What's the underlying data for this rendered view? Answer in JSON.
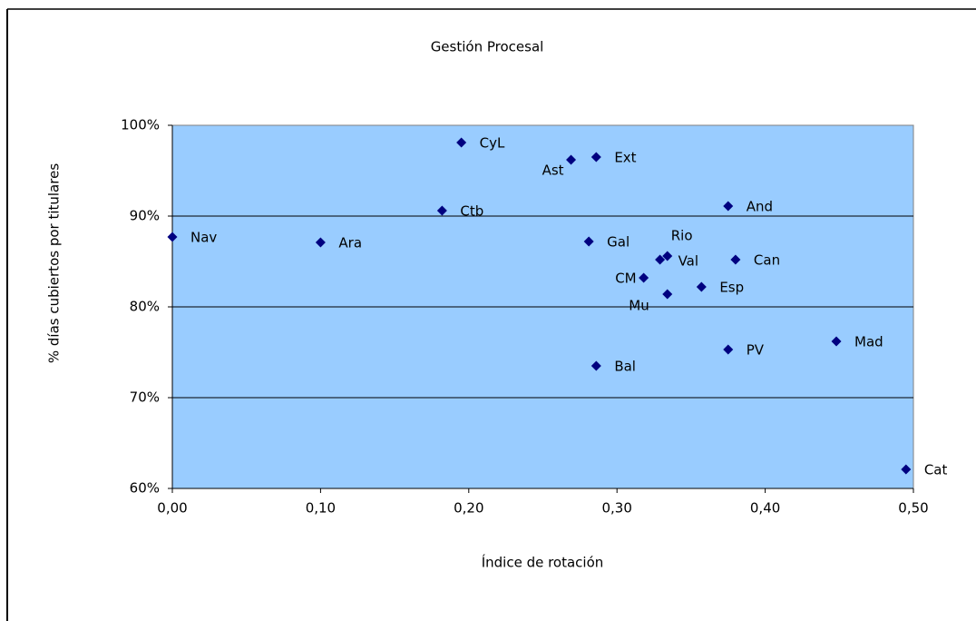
{
  "chart_data": {
    "type": "scatter",
    "title": "Gestión Procesal",
    "x_label": "Índice de rotación",
    "y_label": "% días cubiertos por titulares",
    "color": "#000080",
    "plot_background": "#99ccff",
    "grid": true,
    "xlim": [
      0,
      0.5
    ],
    "ylim": [
      60,
      100
    ],
    "xticks": [
      {
        "value": 0,
        "label": "0,00"
      },
      {
        "value": 0.1,
        "label": "0,10"
      },
      {
        "value": 0.2,
        "label": "0,20"
      },
      {
        "value": 0.3,
        "label": "0,30"
      },
      {
        "value": 0.4,
        "label": "0,40"
      },
      {
        "value": 0.5,
        "label": "0,50"
      }
    ],
    "yticks": [
      {
        "value": 60,
        "label": "60%"
      },
      {
        "value": 70,
        "label": "70%"
      },
      {
        "value": 80,
        "label": "80%"
      },
      {
        "value": 90,
        "label": "90%"
      },
      {
        "value": 100,
        "label": "100%"
      }
    ],
    "labels": [
      "CyL",
      "Ast",
      "Ext",
      "Ctb",
      "And",
      "Nav",
      "Ara",
      "Gal",
      "Rio",
      "Val",
      "Can",
      "CM",
      "Esp",
      "Mu",
      "PV",
      "Mad",
      "Bal",
      "Cat"
    ],
    "x": [
      0.195,
      0.269,
      0.286,
      0.182,
      0.375,
      0,
      0.1,
      0.281,
      0.334,
      0.329,
      0.38,
      0.318,
      0.357,
      0.334,
      0.375,
      0.448,
      0.286,
      0.495
    ],
    "y": [
      98.1,
      96.2,
      96.5,
      90.6,
      91.1,
      87.7,
      87.1,
      87.2,
      85.6,
      85.2,
      85.2,
      83.2,
      82.2,
      81.4,
      75.3,
      76.2,
      73.5,
      62.1
    ]
  }
}
